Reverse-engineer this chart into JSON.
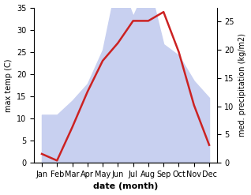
{
  "months": [
    "Jan",
    "Feb",
    "Mar",
    "Apr",
    "May",
    "Jun",
    "Jul",
    "Aug",
    "Sep",
    "Oct",
    "Nov",
    "Dec"
  ],
  "temp": [
    2.0,
    0.5,
    8.0,
    16.0,
    23.0,
    27.0,
    32.0,
    32.0,
    34.0,
    25.0,
    13.0,
    4.0
  ],
  "precip": [
    8.5,
    8.5,
    11.0,
    14.0,
    20.0,
    33.0,
    26.0,
    32.0,
    21.0,
    19.0,
    14.5,
    11.5
  ],
  "temp_color": "#cc2222",
  "precip_fill_color": "#c8d0f0",
  "ylim_temp": [
    0,
    35
  ],
  "ylim_precip": [
    0,
    27.5
  ],
  "yticks_temp": [
    0,
    5,
    10,
    15,
    20,
    25,
    30,
    35
  ],
  "yticks_precip": [
    0,
    5,
    10,
    15,
    20,
    25
  ],
  "xlabel": "date (month)",
  "ylabel_left": "max temp (C)",
  "ylabel_right": "med. precipitation (kg/m2)",
  "background_color": "#ffffff",
  "temp_linewidth": 1.8,
  "xlabel_fontsize": 8,
  "ylabel_fontsize": 7,
  "tick_fontsize": 7
}
